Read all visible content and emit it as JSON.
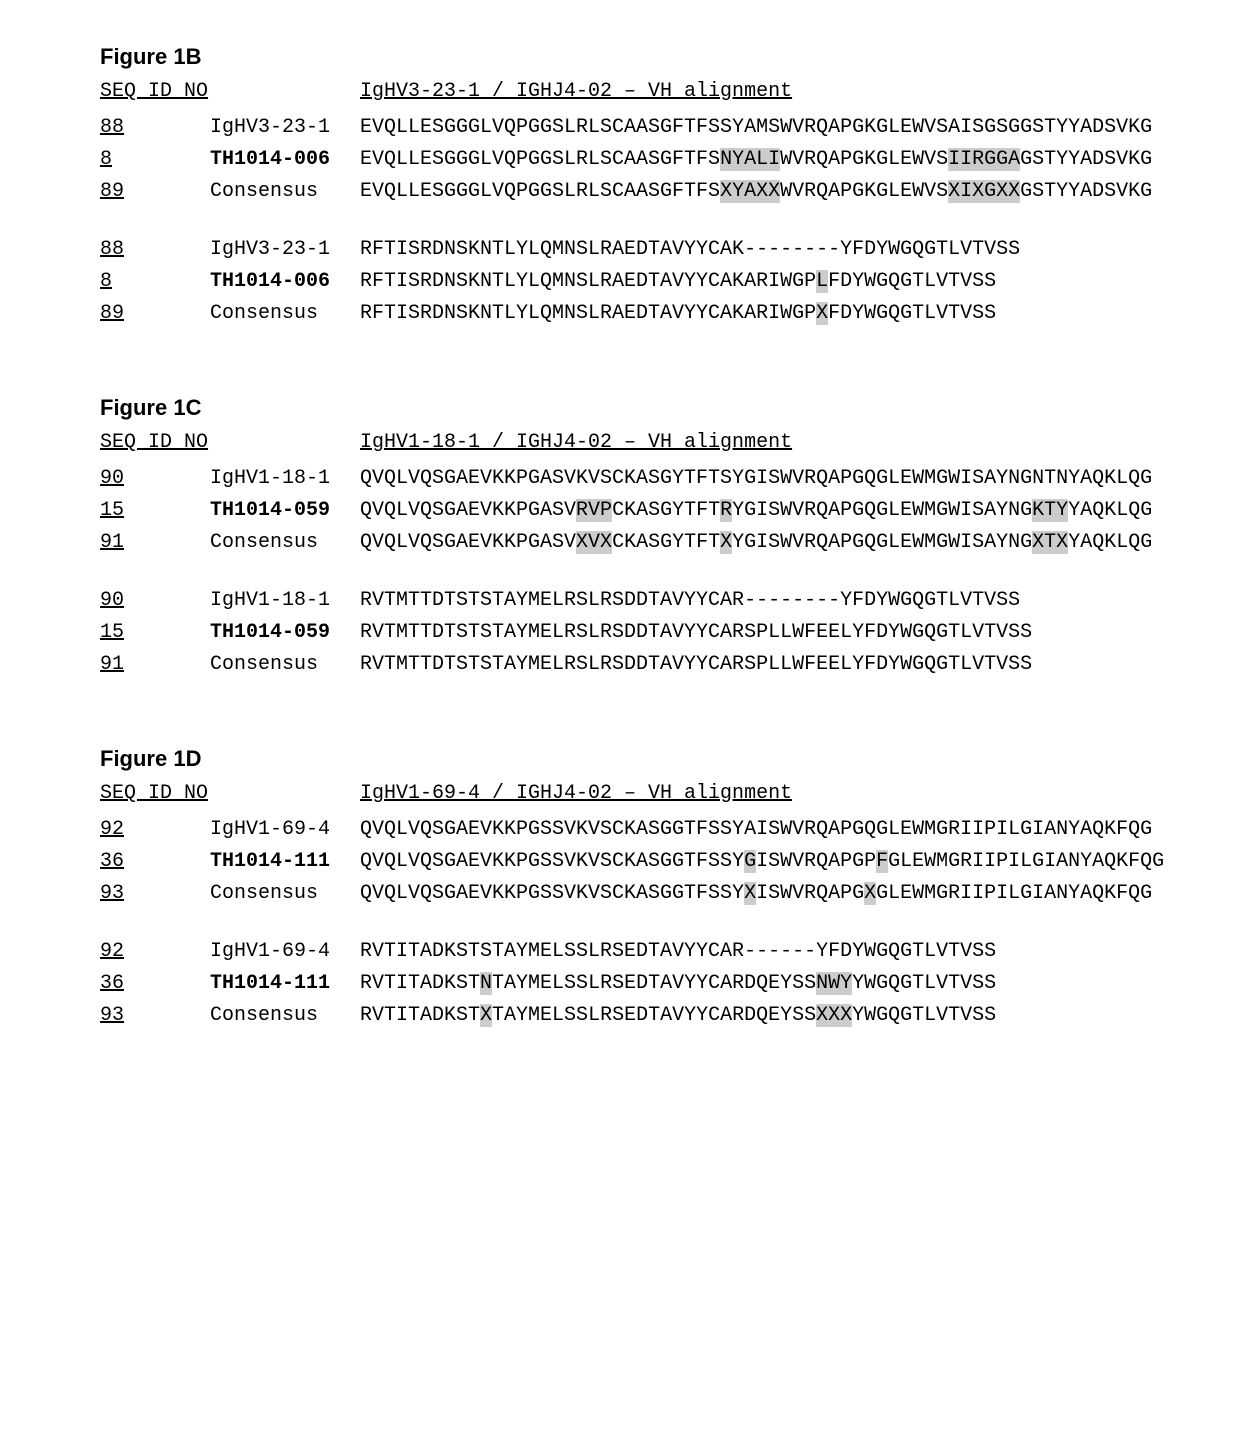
{
  "seq_header_label": "SEQ ID NO",
  "highlight_color": "#cccccc",
  "fontsize_pt": 15,
  "figures": [
    {
      "title": "Figure 1B",
      "alignment_title": "IgHV3-23-1 / IGHJ4-02 – VH alignment",
      "blocks": [
        [
          {
            "seqno": "88",
            "label": "IgHV3-23-1",
            "bold": false,
            "chunks": [
              {
                "t": "EVQLLESGGGLVQPGGSLRLSCAASGFTFSSYAMSWVRQAPGKGLEWVSAISGSGGSTYYADSVKG",
                "h": false
              }
            ]
          },
          {
            "seqno": "8",
            "label": "TH1014-006",
            "bold": true,
            "chunks": [
              {
                "t": "EVQLLESGGGLVQPGGSLRLSCAASGFTFS",
                "h": false
              },
              {
                "t": "NYALI",
                "h": true
              },
              {
                "t": "WVRQAPGKGLEWVS",
                "h": false
              },
              {
                "t": "IIRGGA",
                "h": true
              },
              {
                "t": "GSTYYADSVKG",
                "h": false
              }
            ]
          },
          {
            "seqno": "89",
            "label": "Consensus",
            "bold": false,
            "chunks": [
              {
                "t": "EVQLLESGGGLVQPGGSLRLSCAASGFTFS",
                "h": false
              },
              {
                "t": "XYAXX",
                "h": true
              },
              {
                "t": "WVRQAPGKGLEWVS",
                "h": false
              },
              {
                "t": "XIXGXX",
                "h": true
              },
              {
                "t": "GSTYYADSVKG",
                "h": false
              }
            ]
          }
        ],
        [
          {
            "seqno": "88",
            "label": "IgHV3-23-1",
            "bold": false,
            "chunks": [
              {
                "t": "RFTISRDNSKNTLYLQMNSLRAEDTAVYYCAK--------YFDYWGQGTLVTVSS",
                "h": false
              }
            ]
          },
          {
            "seqno": "8",
            "label": "TH1014-006",
            "bold": true,
            "chunks": [
              {
                "t": "RFTISRDNSKNTLYLQMNSLRAEDTAVYYCAKARIWGP",
                "h": false
              },
              {
                "t": "L",
                "h": true
              },
              {
                "t": "FDYWGQGTLVTVSS",
                "h": false
              }
            ]
          },
          {
            "seqno": "89",
            "label": "Consensus",
            "bold": false,
            "chunks": [
              {
                "t": "RFTISRDNSKNTLYLQMNSLRAEDTAVYYCAKARIWGP",
                "h": false
              },
              {
                "t": "X",
                "h": true
              },
              {
                "t": "FDYWGQGTLVTVSS",
                "h": false
              }
            ]
          }
        ]
      ]
    },
    {
      "title": "Figure 1C",
      "alignment_title": "IgHV1-18-1 / IGHJ4-02 – VH alignment",
      "blocks": [
        [
          {
            "seqno": "90",
            "label": "IgHV1-18-1",
            "bold": false,
            "chunks": [
              {
                "t": "QVQLVQSGAEVKKPGASVKVSCKASGYTFTSYGISWVRQAPGQGLEWMGWISAYNGNTNYAQKLQG",
                "h": false
              }
            ]
          },
          {
            "seqno": "15",
            "label": "TH1014-059",
            "bold": true,
            "chunks": [
              {
                "t": "QVQLVQSGAEVKKPGASV",
                "h": false
              },
              {
                "t": "RVP",
                "h": true
              },
              {
                "t": "CKASGYTFT",
                "h": false
              },
              {
                "t": "R",
                "h": true
              },
              {
                "t": "YGISWVRQAPGQGLEWMGWISAYNG",
                "h": false
              },
              {
                "t": "KTY",
                "h": true
              },
              {
                "t": "YAQKLQG",
                "h": false
              }
            ]
          },
          {
            "seqno": "91",
            "label": "Consensus",
            "bold": false,
            "chunks": [
              {
                "t": "QVQLVQSGAEVKKPGASV",
                "h": false
              },
              {
                "t": "XVX",
                "h": true
              },
              {
                "t": "CKASGYTFT",
                "h": false
              },
              {
                "t": "X",
                "h": true
              },
              {
                "t": "YGISWVRQAPGQGLEWMGWISAYNG",
                "h": false
              },
              {
                "t": "XTX",
                "h": true
              },
              {
                "t": "YAQKLQG",
                "h": false
              }
            ]
          }
        ],
        [
          {
            "seqno": "90",
            "label": "IgHV1-18-1",
            "bold": false,
            "chunks": [
              {
                "t": "RVTMTTDTSTSTAYMELRSLRSDDTAVYYCAR--------YFDYWGQGTLVTVSS",
                "h": false
              }
            ]
          },
          {
            "seqno": "15",
            "label": "TH1014-059",
            "bold": true,
            "chunks": [
              {
                "t": "RVTMTTDTSTSTAYMELRSLRSDDTAVYYCARSPLLWFEELYFDYWGQGTLVTVSS",
                "h": false
              }
            ]
          },
          {
            "seqno": "91",
            "label": "Consensus",
            "bold": false,
            "chunks": [
              {
                "t": "RVTMTTDTSTSTAYMELRSLRSDDTAVYYCARSPLLWFEELYFDYWGQGTLVTVSS",
                "h": false
              }
            ]
          }
        ]
      ]
    },
    {
      "title": "Figure 1D",
      "alignment_title": "IgHV1-69-4 / IGHJ4-02 – VH alignment",
      "blocks": [
        [
          {
            "seqno": "92",
            "label": "IgHV1-69-4",
            "bold": false,
            "chunks": [
              {
                "t": "QVQLVQSGAEVKKPGSSVKVSCKASGGTFSSYAISWVRQAPGQGLEWMGRIIPILGIANYAQKFQG",
                "h": false
              }
            ]
          },
          {
            "seqno": "36",
            "label": "TH1014-111",
            "bold": true,
            "chunks": [
              {
                "t": "QVQLVQSGAEVKKPGSSVKVSCKASGGTFSSY",
                "h": false
              },
              {
                "t": "G",
                "h": true
              },
              {
                "t": "ISWVRQAPGP",
                "h": false
              },
              {
                "t": "F",
                "h": true
              },
              {
                "t": "GLEWMGRIIPILGIANYAQKFQG",
                "h": false
              }
            ]
          },
          {
            "seqno": "93",
            "label": "Consensus",
            "bold": false,
            "chunks": [
              {
                "t": "QVQLVQSGAEVKKPGSSVKVSCKASGGTFSSY",
                "h": false
              },
              {
                "t": "X",
                "h": true
              },
              {
                "t": "ISWVRQAPG",
                "h": false
              },
              {
                "t": "X",
                "h": true
              },
              {
                "t": "GLEWMGRIIPILGIANYAQKFQG",
                "h": false
              }
            ]
          }
        ],
        [
          {
            "seqno": "92",
            "label": "IgHV1-69-4",
            "bold": false,
            "chunks": [
              {
                "t": "RVTITADKSTSTAYMELSSLRSEDTAVYYCAR------YFDYWGQGTLVTVSS",
                "h": false
              }
            ]
          },
          {
            "seqno": "36",
            "label": "TH1014-111",
            "bold": true,
            "chunks": [
              {
                "t": "RVTITADKST",
                "h": false
              },
              {
                "t": "N",
                "h": true
              },
              {
                "t": "TAYMELSSLRSEDTAVYYCARDQEYSS",
                "h": false
              },
              {
                "t": "NWY",
                "h": true
              },
              {
                "t": "YWGQGTLVTVSS",
                "h": false
              }
            ]
          },
          {
            "seqno": "93",
            "label": "Consensus",
            "bold": false,
            "chunks": [
              {
                "t": "RVTITADKST",
                "h": false
              },
              {
                "t": "X",
                "h": true
              },
              {
                "t": "TAYMELSSLRSEDTAVYYCARDQEYSS",
                "h": false
              },
              {
                "t": "XXX",
                "h": true
              },
              {
                "t": "YWGQGTLVTVSS",
                "h": false
              }
            ]
          }
        ]
      ]
    }
  ]
}
